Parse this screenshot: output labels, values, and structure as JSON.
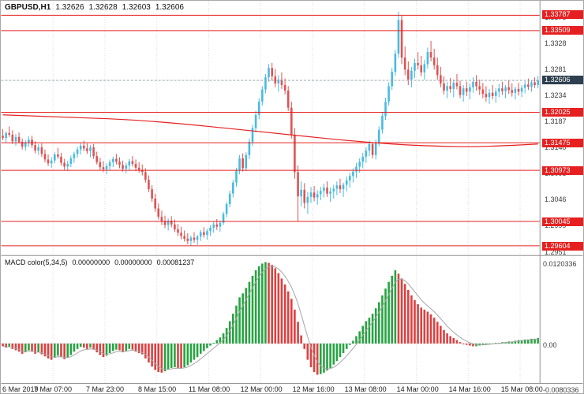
{
  "header": {
    "symbol_period": "GBPUSD,H1",
    "open": "1.32626",
    "high": "1.32628",
    "low": "1.32603",
    "close": "1.32606"
  },
  "macd_header": {
    "name": "MACD color(5,34,5)",
    "value1": "0.00000000",
    "value2": "0.00000000",
    "value3": "0.00081237"
  },
  "colors": {
    "bull": "#47bbe1",
    "bear": "#e05252",
    "level": "#e62020",
    "ma": "#e62020",
    "macd_up": "#27a342",
    "macd_down": "#dd4040",
    "signal": "#a6a6a6",
    "grid": "#dadada",
    "separator": "#909090",
    "bid_bg": "#2e3f4f",
    "background": "#ffffff"
  },
  "chart_data": {
    "type": "candlestick",
    "symbol": "GBPUSD",
    "timeframe": "H1",
    "price_axis": {
      "min": 1.2942,
      "max": 1.3405,
      "tick_labels": [
        "1.3375",
        "1.3328",
        "1.3281",
        "1.3234",
        "1.3187",
        "1.3140",
        "1.3093",
        "1.3046",
        "1.2999",
        "1.2951"
      ]
    },
    "levels": [
      "1.33787",
      "1.33509",
      "1.32025",
      "1.31475",
      "1.30973",
      "1.30045",
      "1.29604"
    ],
    "bid": {
      "value": 1.32606,
      "label": "1.32606"
    },
    "time_labels": [
      "6 Mar 2019",
      "7 Mar 07:00",
      "7 Mar 23:00",
      "8 Mar 15:00",
      "11 Mar 08:00",
      "12 Mar 00:00",
      "12 Mar 16:00",
      "13 Mar 08:00",
      "14 Mar 00:00",
      "14 Mar 16:00",
      "15 Mar 08:00"
    ],
    "bars_per_tick": 16,
    "candles": [
      [
        1.316,
        1.3172,
        1.3152,
        1.3156
      ],
      [
        1.3156,
        1.3168,
        1.3148,
        1.3165
      ],
      [
        1.3165,
        1.3177,
        1.3158,
        1.3162
      ],
      [
        1.3162,
        1.317,
        1.3145,
        1.315
      ],
      [
        1.315,
        1.3163,
        1.3142,
        1.3158
      ],
      [
        1.3158,
        1.3166,
        1.3146,
        1.3149
      ],
      [
        1.3149,
        1.3155,
        1.3135,
        1.314
      ],
      [
        1.314,
        1.3152,
        1.3133,
        1.3147
      ],
      [
        1.3147,
        1.3159,
        1.314,
        1.3153
      ],
      [
        1.3153,
        1.316,
        1.3138,
        1.3143
      ],
      [
        1.3143,
        1.315,
        1.3128,
        1.3133
      ],
      [
        1.3133,
        1.3145,
        1.3125,
        1.3139
      ],
      [
        1.3139,
        1.3146,
        1.3122,
        1.3127
      ],
      [
        1.3127,
        1.3135,
        1.3112,
        1.3117
      ],
      [
        1.3117,
        1.3126,
        1.3105,
        1.311
      ],
      [
        1.311,
        1.3121,
        1.3102,
        1.3115
      ],
      [
        1.3115,
        1.313,
        1.311,
        1.3126
      ],
      [
        1.3126,
        1.3138,
        1.3118,
        1.3122
      ],
      [
        1.3122,
        1.3129,
        1.3106,
        1.3111
      ],
      [
        1.3111,
        1.3118,
        1.3098,
        1.3104
      ],
      [
        1.3104,
        1.3115,
        1.3096,
        1.3109
      ],
      [
        1.3109,
        1.3124,
        1.3103,
        1.3119
      ],
      [
        1.3119,
        1.3131,
        1.3111,
        1.3127
      ],
      [
        1.3127,
        1.314,
        1.312,
        1.3135
      ],
      [
        1.3135,
        1.3147,
        1.3126,
        1.3142
      ],
      [
        1.3142,
        1.3151,
        1.3132,
        1.3137
      ],
      [
        1.3137,
        1.3146,
        1.3127,
        1.3132
      ],
      [
        1.3132,
        1.3143,
        1.3121,
        1.3139
      ],
      [
        1.3139,
        1.3145,
        1.3118,
        1.3123
      ],
      [
        1.3123,
        1.3131,
        1.3108,
        1.3112
      ],
      [
        1.3112,
        1.312,
        1.3098,
        1.3103
      ],
      [
        1.3103,
        1.3114,
        1.3094,
        1.3099
      ],
      [
        1.3099,
        1.311,
        1.309,
        1.3105
      ],
      [
        1.3105,
        1.3117,
        1.3097,
        1.3112
      ],
      [
        1.3112,
        1.3122,
        1.3103,
        1.3118
      ],
      [
        1.3118,
        1.3127,
        1.3108,
        1.3113
      ],
      [
        1.3113,
        1.3121,
        1.3101,
        1.3107
      ],
      [
        1.3107,
        1.3115,
        1.3095,
        1.31
      ],
      [
        1.31,
        1.3111,
        1.3092,
        1.3106
      ],
      [
        1.3106,
        1.3118,
        1.3098,
        1.3114
      ],
      [
        1.3114,
        1.3123,
        1.3104,
        1.3109
      ],
      [
        1.3109,
        1.3117,
        1.3096,
        1.3102
      ],
      [
        1.3102,
        1.3112,
        1.3093,
        1.3098
      ],
      [
        1.3098,
        1.3108,
        1.3088,
        1.3094
      ],
      [
        1.3094,
        1.3101,
        1.3075,
        1.308
      ],
      [
        1.308,
        1.3088,
        1.3058,
        1.3063
      ],
      [
        1.3063,
        1.307,
        1.304,
        1.3046
      ],
      [
        1.3046,
        1.3055,
        1.3022,
        1.3028
      ],
      [
        1.3028,
        1.3037,
        1.3008,
        1.3013
      ],
      [
        1.3013,
        1.3024,
        1.2998,
        1.3004
      ],
      [
        1.3004,
        1.3015,
        1.2992,
        1.2998
      ],
      [
        1.2998,
        1.301,
        1.2988,
        1.3006
      ],
      [
        1.3006,
        1.3014,
        1.2994,
        1.2999
      ],
      [
        1.2999,
        1.3008,
        1.2985,
        1.299
      ],
      [
        1.299,
        1.3,
        1.2978,
        1.2984
      ],
      [
        1.2984,
        1.2995,
        1.2972,
        1.2978
      ],
      [
        1.2978,
        1.2988,
        1.2968,
        1.2973
      ],
      [
        1.2973,
        1.2983,
        1.2963,
        1.2969
      ],
      [
        1.2969,
        1.2979,
        1.2961,
        1.2975
      ],
      [
        1.2975,
        1.2985,
        1.2966,
        1.2971
      ],
      [
        1.2971,
        1.298,
        1.2962,
        1.2977
      ],
      [
        1.2977,
        1.2989,
        1.2969,
        1.2985
      ],
      [
        1.2985,
        1.2994,
        1.2975,
        1.298
      ],
      [
        1.298,
        1.2991,
        1.2971,
        1.2987
      ],
      [
        1.2987,
        1.2998,
        1.2978,
        1.2993
      ],
      [
        1.2993,
        1.3004,
        1.2984,
        1.2999
      ],
      [
        1.2999,
        1.3009,
        1.2989,
        1.2995
      ],
      [
        1.2995,
        1.3006,
        1.2986,
        1.3002
      ],
      [
        1.3002,
        1.3022,
        1.2998,
        1.3018
      ],
      [
        1.3018,
        1.304,
        1.3012,
        1.3036
      ],
      [
        1.3036,
        1.306,
        1.303,
        1.3055
      ],
      [
        1.3055,
        1.308,
        1.3048,
        1.3075
      ],
      [
        1.3075,
        1.3102,
        1.3068,
        1.3097
      ],
      [
        1.3097,
        1.3125,
        1.309,
        1.3119
      ],
      [
        1.3119,
        1.3128,
        1.3095,
        1.3101
      ],
      [
        1.3101,
        1.313,
        1.3096,
        1.3125
      ],
      [
        1.3125,
        1.3155,
        1.3118,
        1.3149
      ],
      [
        1.3149,
        1.318,
        1.3142,
        1.3174
      ],
      [
        1.3174,
        1.3205,
        1.3166,
        1.3198
      ],
      [
        1.3198,
        1.3228,
        1.319,
        1.3222
      ],
      [
        1.3222,
        1.325,
        1.3215,
        1.3244
      ],
      [
        1.3244,
        1.3272,
        1.3237,
        1.3266
      ],
      [
        1.3266,
        1.329,
        1.3258,
        1.3283
      ],
      [
        1.3283,
        1.3292,
        1.326,
        1.3268
      ],
      [
        1.3268,
        1.3281,
        1.3248,
        1.3255
      ],
      [
        1.3255,
        1.327,
        1.324,
        1.3262
      ],
      [
        1.3262,
        1.3275,
        1.3245,
        1.3252
      ],
      [
        1.3252,
        1.3264,
        1.3235,
        1.3242
      ],
      [
        1.3242,
        1.325,
        1.3205,
        1.3211
      ],
      [
        1.3211,
        1.3222,
        1.3155,
        1.3162
      ],
      [
        1.3162,
        1.3174,
        1.3082,
        1.3094
      ],
      [
        1.3094,
        1.3106,
        1.3005,
        1.305
      ],
      [
        1.305,
        1.3077,
        1.3032,
        1.3062
      ],
      [
        1.3062,
        1.3074,
        1.3028,
        1.3038
      ],
      [
        1.3038,
        1.3058,
        1.3018,
        1.3049
      ],
      [
        1.3049,
        1.3067,
        1.3038,
        1.3057
      ],
      [
        1.3057,
        1.3069,
        1.3041,
        1.3048
      ],
      [
        1.3048,
        1.3061,
        1.3035,
        1.3054
      ],
      [
        1.3054,
        1.3067,
        1.3043,
        1.306
      ],
      [
        1.306,
        1.3073,
        1.3048,
        1.3066
      ],
      [
        1.3066,
        1.3077,
        1.3049,
        1.3055
      ],
      [
        1.3055,
        1.3066,
        1.304,
        1.3059
      ],
      [
        1.3059,
        1.3071,
        1.3046,
        1.3064
      ],
      [
        1.3064,
        1.3077,
        1.3052,
        1.307
      ],
      [
        1.307,
        1.3082,
        1.3056,
        1.3063
      ],
      [
        1.3063,
        1.3075,
        1.3049,
        1.3071
      ],
      [
        1.3071,
        1.3086,
        1.3059,
        1.3079
      ],
      [
        1.3079,
        1.3093,
        1.3066,
        1.3087
      ],
      [
        1.3087,
        1.3101,
        1.3075,
        1.3095
      ],
      [
        1.3095,
        1.3111,
        1.3083,
        1.3104
      ],
      [
        1.3104,
        1.3119,
        1.3093,
        1.3113
      ],
      [
        1.3113,
        1.3129,
        1.3101,
        1.3122
      ],
      [
        1.3122,
        1.3139,
        1.3111,
        1.3133
      ],
      [
        1.3133,
        1.3151,
        1.3123,
        1.3145
      ],
      [
        1.3145,
        1.3147,
        1.3119,
        1.3125
      ],
      [
        1.3125,
        1.3153,
        1.3117,
        1.3148
      ],
      [
        1.3148,
        1.3177,
        1.3141,
        1.3171
      ],
      [
        1.3171,
        1.3203,
        1.3164,
        1.3196
      ],
      [
        1.3196,
        1.3229,
        1.3189,
        1.3222
      ],
      [
        1.3222,
        1.3257,
        1.3215,
        1.325
      ],
      [
        1.325,
        1.3283,
        1.3243,
        1.3276
      ],
      [
        1.3276,
        1.3316,
        1.3269,
        1.3309
      ],
      [
        1.3309,
        1.3385,
        1.3301,
        1.337
      ],
      [
        1.337,
        1.3378,
        1.329,
        1.3302
      ],
      [
        1.3302,
        1.3322,
        1.327,
        1.328
      ],
      [
        1.328,
        1.3295,
        1.3252,
        1.3262
      ],
      [
        1.3262,
        1.3285,
        1.3248,
        1.3278
      ],
      [
        1.3278,
        1.33,
        1.3265,
        1.3292
      ],
      [
        1.3292,
        1.3312,
        1.328,
        1.3288
      ],
      [
        1.3288,
        1.3305,
        1.3268,
        1.3275
      ],
      [
        1.3275,
        1.3298,
        1.3262,
        1.329
      ],
      [
        1.329,
        1.332,
        1.3282,
        1.3312
      ],
      [
        1.3312,
        1.3332,
        1.3295,
        1.3302
      ],
      [
        1.3302,
        1.3318,
        1.328,
        1.3288
      ],
      [
        1.3288,
        1.3302,
        1.3262,
        1.327
      ],
      [
        1.327,
        1.3285,
        1.3248,
        1.3255
      ],
      [
        1.3255,
        1.3268,
        1.3235,
        1.3242
      ],
      [
        1.3242,
        1.3258,
        1.3228,
        1.325
      ],
      [
        1.325,
        1.3265,
        1.3238,
        1.3245
      ],
      [
        1.3245,
        1.3262,
        1.323,
        1.3256
      ],
      [
        1.3256,
        1.3272,
        1.3244,
        1.325
      ],
      [
        1.325,
        1.326,
        1.3228,
        1.3234
      ],
      [
        1.3234,
        1.3252,
        1.3222,
        1.3246
      ],
      [
        1.3246,
        1.3258,
        1.3232,
        1.324
      ],
      [
        1.324,
        1.3255,
        1.3226,
        1.3248
      ],
      [
        1.3248,
        1.3266,
        1.3238,
        1.3258
      ],
      [
        1.3258,
        1.327,
        1.3242,
        1.325
      ],
      [
        1.325,
        1.3262,
        1.3234,
        1.3244
      ],
      [
        1.3244,
        1.3256,
        1.3228,
        1.3236
      ],
      [
        1.3236,
        1.325,
        1.3222,
        1.323
      ],
      [
        1.323,
        1.3245,
        1.3218,
        1.3238
      ],
      [
        1.3238,
        1.3252,
        1.3226,
        1.3232
      ],
      [
        1.3232,
        1.3246,
        1.322,
        1.324
      ],
      [
        1.324,
        1.3254,
        1.323,
        1.3246
      ],
      [
        1.3246,
        1.3258,
        1.3234,
        1.3241
      ],
      [
        1.3241,
        1.3252,
        1.3228,
        1.3248
      ],
      [
        1.3248,
        1.326,
        1.3236,
        1.3243
      ],
      [
        1.3243,
        1.3255,
        1.3231,
        1.3238
      ],
      [
        1.3238,
        1.3249,
        1.3226,
        1.3245
      ],
      [
        1.3245,
        1.3256,
        1.3233,
        1.324
      ],
      [
        1.324,
        1.3252,
        1.323,
        1.3247
      ],
      [
        1.3247,
        1.3259,
        1.3237,
        1.3253
      ],
      [
        1.3253,
        1.3264,
        1.3243,
        1.3249
      ],
      [
        1.3249,
        1.3261,
        1.324,
        1.3257
      ],
      [
        1.3257,
        1.3266,
        1.3247,
        1.3252
      ],
      [
        1.3252,
        1.3268,
        1.3246,
        1.32606
      ]
    ],
    "ma_points": [
      [
        0,
        1.3198
      ],
      [
        20,
        1.3194
      ],
      [
        40,
        1.3189
      ],
      [
        55,
        1.3182
      ],
      [
        70,
        1.3173
      ],
      [
        85,
        1.3164
      ],
      [
        95,
        1.3158
      ],
      [
        105,
        1.3152
      ],
      [
        115,
        1.3147
      ],
      [
        125,
        1.3143
      ],
      [
        135,
        1.3141
      ],
      [
        145,
        1.314
      ],
      [
        155,
        1.3142
      ],
      [
        165,
        1.3145
      ]
    ],
    "macd": {
      "name": "MACD color(5,34,5)",
      "axis_top": "0.0120336",
      "axis_zero": "0.00",
      "axis_bottom": "-0.0080336",
      "ylim": [
        -0.0056,
        0.0127
      ],
      "values": [
        -0.0004,
        -0.0006,
        -0.0005,
        -0.0008,
        -0.001,
        -0.0012,
        -0.0015,
        -0.0013,
        -0.001,
        -0.0012,
        -0.0015,
        -0.0013,
        -0.0016,
        -0.0019,
        -0.0022,
        -0.0024,
        -0.0021,
        -0.0018,
        -0.002,
        -0.0023,
        -0.0021,
        -0.0017,
        -0.0012,
        -0.0008,
        -0.0005,
        -0.0006,
        -0.0008,
        -0.0006,
        -0.0009,
        -0.0013,
        -0.0017,
        -0.002,
        -0.0018,
        -0.0014,
        -0.0011,
        -0.0009,
        -0.001,
        -0.0013,
        -0.0011,
        -0.0008,
        -0.0009,
        -0.0012,
        -0.0014,
        -0.0016,
        -0.0022,
        -0.0028,
        -0.0034,
        -0.0039,
        -0.0042,
        -0.0043,
        -0.0041,
        -0.0038,
        -0.0036,
        -0.0035,
        -0.0036,
        -0.0037,
        -0.0035,
        -0.0032,
        -0.0028,
        -0.0024,
        -0.002,
        -0.0015,
        -0.0011,
        -0.0007,
        -0.0003,
        0.0001,
        0.0005,
        0.0009,
        0.0015,
        0.0023,
        0.0033,
        0.0044,
        0.0056,
        0.0068,
        0.0074,
        0.0082,
        0.0091,
        0.01,
        0.0108,
        0.0114,
        0.0118,
        0.012,
        0.0119,
        0.0116,
        0.0111,
        0.0104,
        0.0096,
        0.0087,
        0.0077,
        0.0066,
        0.005,
        0.0032,
        0.0012,
        -0.0008,
        -0.0024,
        -0.0035,
        -0.0042,
        -0.0046,
        -0.0045,
        -0.0043,
        -0.004,
        -0.0036,
        -0.0031,
        -0.0026,
        -0.002,
        -0.0014,
        -0.0008,
        -0.0002,
        0.0004,
        0.0011,
        0.0018,
        0.0026,
        0.0033,
        0.0038,
        0.0044,
        0.0052,
        0.0061,
        0.0071,
        0.0081,
        0.0091,
        0.01,
        0.0108,
        0.0103,
        0.0096,
        0.0088,
        0.0079,
        0.0071,
        0.0064,
        0.0058,
        0.0053,
        0.005,
        0.0047,
        0.0043,
        0.0038,
        0.0032,
        0.0026,
        0.002,
        0.0015,
        0.0011,
        0.0008,
        0.0005,
        0.0002,
        0.0,
        -0.0002,
        -0.0003,
        -0.0004,
        -0.0004,
        -0.0003,
        -0.0002,
        -0.0001,
        0.0,
        0.0,
        0.0001,
        0.0001,
        0.0002,
        0.0002,
        0.0003,
        0.0003,
        0.0004,
        0.0005,
        0.0005,
        0.0006,
        0.0006,
        0.0007,
        0.0007,
        0.00081237
      ]
    }
  }
}
